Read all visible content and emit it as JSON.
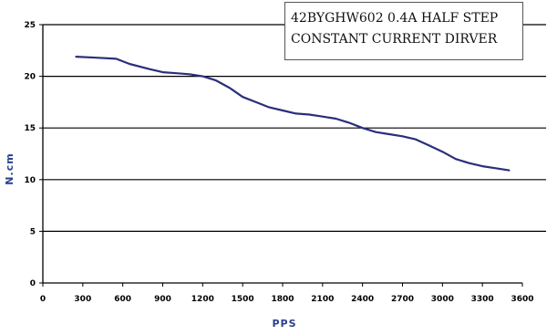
{
  "caption": {
    "line1": "42BYGHW602 0.4A HALF STEP",
    "line2": "CONSTANT CURRENT DIRVER"
  },
  "chart_data": {
    "type": "line",
    "xlabel": "PPS",
    "ylabel": "N.cm",
    "xlim": [
      0,
      3600
    ],
    "ylim": [
      0,
      25
    ],
    "x_ticks": [
      "0",
      "300",
      "600",
      "900",
      "1200",
      "1500",
      "1800",
      "2100",
      "2400",
      "2700",
      "3000",
      "3300",
      "3600"
    ],
    "y_ticks": [
      "0",
      "5",
      "10",
      "15",
      "20",
      "25"
    ],
    "grid": "horizontal",
    "line_color": "#2a2f7a",
    "series": [
      {
        "x": [
          250,
          400,
          550,
          650,
          800,
          900,
          1000,
          1100,
          1200,
          1300,
          1400,
          1500,
          1600,
          1700,
          1800,
          1900,
          2000,
          2100,
          2200,
          2300,
          2400,
          2500,
          2600,
          2700,
          2800,
          2900,
          3000,
          3100,
          3200,
          3300,
          3400,
          3500
        ],
        "y": [
          21.9,
          21.8,
          21.7,
          21.2,
          20.7,
          20.4,
          20.3,
          20.2,
          20.0,
          19.6,
          18.9,
          18.0,
          17.5,
          17.0,
          16.7,
          16.4,
          16.3,
          16.1,
          15.9,
          15.5,
          15.0,
          14.6,
          14.4,
          14.2,
          13.9,
          13.3,
          12.7,
          12.0,
          11.6,
          11.3,
          11.1,
          10.9
        ]
      }
    ]
  }
}
